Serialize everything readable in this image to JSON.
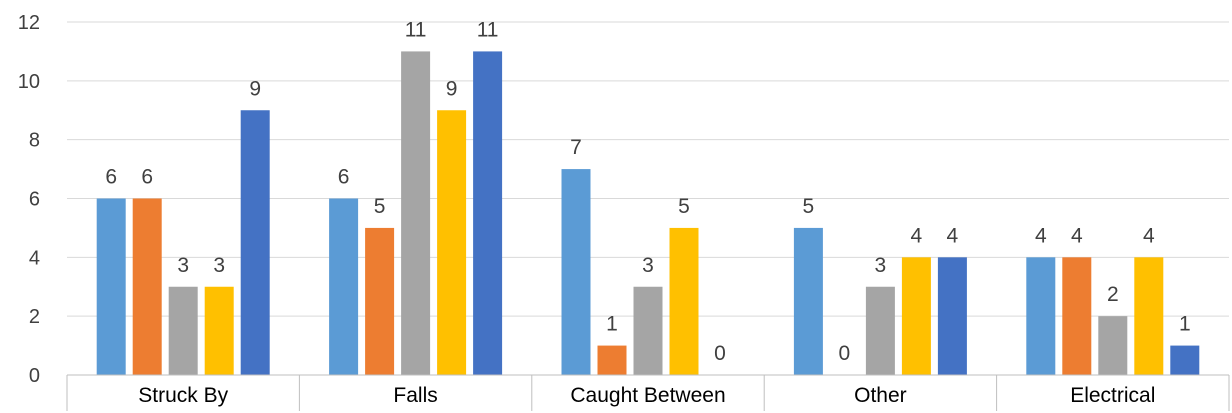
{
  "chart_data": {
    "type": "bar",
    "categories": [
      "Struck By",
      "Falls",
      "Caught Between",
      "Other",
      "Electrical"
    ],
    "series": [
      {
        "values": [
          6,
          6,
          7,
          5,
          4
        ],
        "color": "#5B9BD5"
      },
      {
        "values": [
          6,
          5,
          1,
          0,
          4
        ],
        "color": "#ED7D31"
      },
      {
        "values": [
          3,
          11,
          3,
          3,
          2
        ],
        "color": "#A5A5A5"
      },
      {
        "values": [
          3,
          9,
          5,
          4,
          4
        ],
        "color": "#FFC000"
      },
      {
        "values": [
          9,
          11,
          0,
          4,
          1
        ],
        "color": "#4472C4"
      }
    ],
    "ylim": [
      0,
      12
    ],
    "yticks": [
      0,
      2,
      4,
      6,
      8,
      10,
      12
    ],
    "grid": true,
    "data_labels": true
  }
}
